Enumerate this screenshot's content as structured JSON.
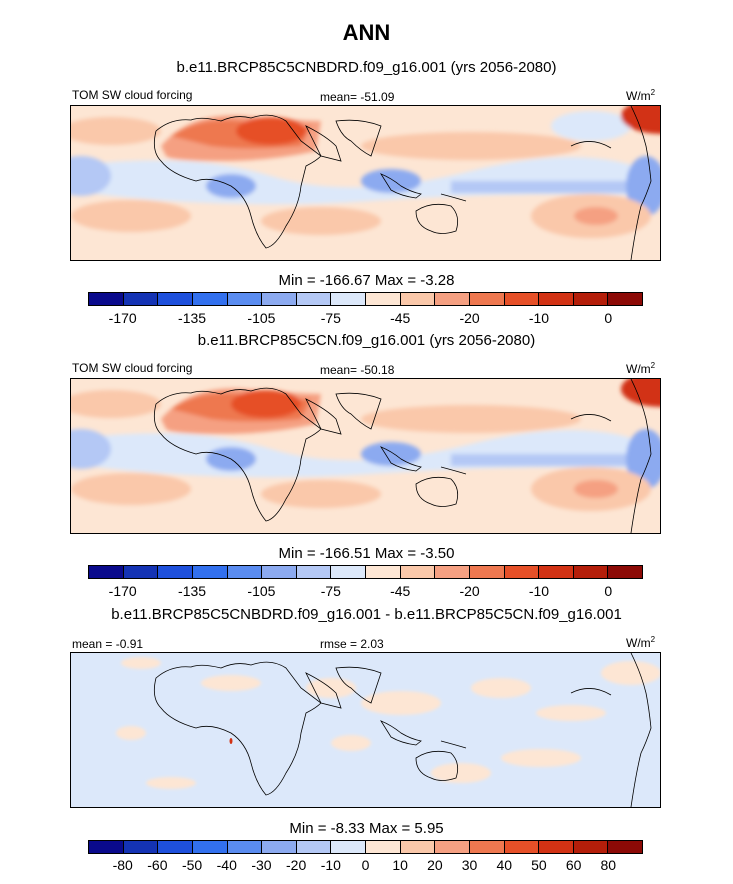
{
  "title": "ANN",
  "panels": [
    {
      "case_title": "b.e11.BRCP85C5CNBDRD.f09_g16.001 (yrs 2056-2080)",
      "left_label": "TOM SW cloud forcing",
      "center_label": "mean= -51.09",
      "units": "W/m",
      "units_sup": "2",
      "stats": "Min = -166.67 Max =  -3.28",
      "map_kind": "field"
    },
    {
      "case_title": "b.e11.BRCP85C5CN.f09_g16.001 (yrs 2056-2080)",
      "left_label": "TOM SW cloud forcing",
      "center_label": "mean= -50.18",
      "units": "W/m",
      "units_sup": "2",
      "stats": "Min = -166.51 Max =  -3.50",
      "map_kind": "field"
    },
    {
      "case_title": "b.e11.BRCP85C5CNBDRD.f09_g16.001 - b.e11.BRCP85C5CN.f09_g16.001",
      "left_label": "mean =  -0.91",
      "center_label": "rmse =   2.03",
      "units": "W/m",
      "units_sup": "2",
      "stats": "Min =  -8.33 Max =   5.95",
      "map_kind": "diff"
    }
  ],
  "colorbar_colors": [
    "#0a0a8c",
    "#1433b4",
    "#1e50dc",
    "#3270ee",
    "#5a8cf0",
    "#8caaf0",
    "#b4c8f5",
    "#dce8fa",
    "#fde6d4",
    "#fac8aa",
    "#f5a082",
    "#ee7850",
    "#e65028",
    "#d23214",
    "#b41e0a",
    "#8c0a06"
  ],
  "colorbars": [
    {
      "ticks": [
        "-170",
        "-135",
        "-105",
        "-75",
        "-45",
        "-20",
        "-10",
        "0"
      ]
    },
    {
      "ticks": [
        "-170",
        "-135",
        "-105",
        "-75",
        "-45",
        "-20",
        "-10",
        "0"
      ]
    },
    {
      "ticks": [
        "-80",
        "-60",
        "-50",
        "-40",
        "-30",
        "-20",
        "-10",
        "0",
        "10",
        "20",
        "30",
        "40",
        "50",
        "60",
        "80"
      ]
    }
  ]
}
